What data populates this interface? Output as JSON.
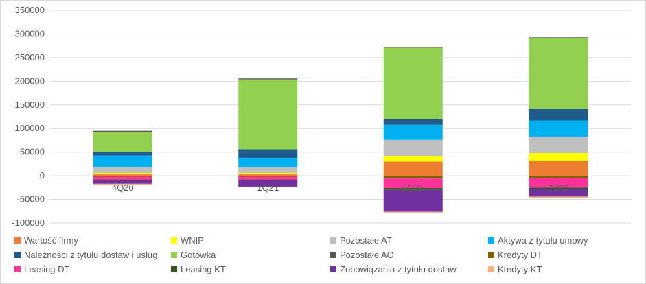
{
  "chart_data": {
    "type": "bar",
    "stacked": true,
    "categories": [
      "4Q20",
      "1Q21",
      "2Q21",
      "3Q21"
    ],
    "ylim": [
      -100000,
      350000
    ],
    "yticks": [
      -100000,
      -50000,
      0,
      50000,
      100000,
      150000,
      200000,
      250000,
      300000,
      350000
    ],
    "grid": true,
    "legend_position": "bottom",
    "series": [
      {
        "name": "Wartość firmy",
        "color": "#ED7D31",
        "values": [
          3000,
          3000,
          30000,
          32000
        ]
      },
      {
        "name": "WNIP",
        "color": "#FFFF00",
        "values": [
          3000,
          3000,
          11000,
          16000
        ]
      },
      {
        "name": "Pozostałe AT",
        "color": "#BFBFBF",
        "values": [
          13000,
          12000,
          35000,
          35000
        ]
      },
      {
        "name": "Aktywa z tytułu umowy",
        "color": "#00B0F0",
        "values": [
          24000,
          20000,
          32000,
          34000
        ]
      },
      {
        "name": "Należności z tytułu dostaw i usług",
        "color": "#1F5C8B",
        "values": [
          7000,
          18000,
          12000,
          24000
        ]
      },
      {
        "name": "Gotówka",
        "color": "#92D050",
        "values": [
          42000,
          148000,
          151000,
          150000
        ]
      },
      {
        "name": "Pozostałe AO",
        "color": "#595959",
        "values": [
          3000,
          2000,
          2000,
          2000
        ]
      },
      {
        "name": "Kredyty DT",
        "color": "#806000",
        "values": [
          -2000,
          -2000,
          -6000,
          -5000
        ]
      },
      {
        "name": "Leasing DT",
        "color": "#FF3399",
        "values": [
          -6000,
          -6000,
          -20000,
          -20000
        ]
      },
      {
        "name": "Leasing KT",
        "color": "#375623",
        "values": [
          -2000,
          -2000,
          -4000,
          -3000
        ]
      },
      {
        "name": "Zobowiązania z tytułu dostaw",
        "color": "#7030A0",
        "values": [
          -7000,
          -13000,
          -46000,
          -16000
        ]
      },
      {
        "name": "Kredyty KT",
        "color": "#F4B183",
        "values": [
          -2000,
          -1000,
          -3000,
          -3000
        ]
      }
    ]
  }
}
